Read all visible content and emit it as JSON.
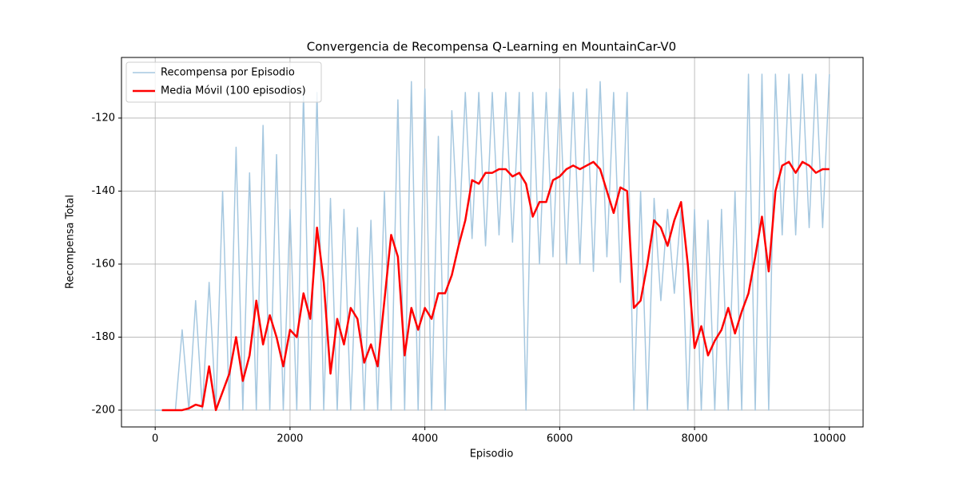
{
  "chart_data": {
    "type": "line",
    "title": "Convergencia de Recompensa Q-Learning en MountainCar-V0",
    "x_label": "Episodio",
    "y_label": "Recompensa Total",
    "xlim": [
      -500,
      10500
    ],
    "ylim": [
      -204.6,
      -103.4
    ],
    "xticks": [
      0,
      2000,
      4000,
      6000,
      8000,
      10000
    ],
    "yticks": [
      -200,
      -180,
      -160,
      -140,
      -120
    ],
    "grid": true,
    "legend": "upper-left",
    "series": [
      {
        "name": "Recompensa por Episodio",
        "color": "#a6c8e0",
        "width": 1.5,
        "x": [
          0,
          100,
          200,
          300,
          400,
          500,
          600,
          700,
          800,
          900,
          1000,
          1100,
          1200,
          1300,
          1400,
          1500,
          1600,
          1700,
          1800,
          1900,
          2000,
          2100,
          2200,
          2300,
          2400,
          2500,
          2600,
          2700,
          2800,
          2900,
          3000,
          3100,
          3200,
          3300,
          3400,
          3500,
          3600,
          3700,
          3800,
          3900,
          4000,
          4100,
          4200,
          4300,
          4400,
          4500,
          4600,
          4700,
          4800,
          4900,
          5000,
          5100,
          5200,
          5300,
          5400,
          5500,
          5600,
          5700,
          5800,
          5900,
          6000,
          6100,
          6200,
          6300,
          6400,
          6500,
          6600,
          6700,
          6800,
          6900,
          7000,
          7100,
          7200,
          7300,
          7400,
          7500,
          7600,
          7700,
          7800,
          7900,
          8000,
          8100,
          8200,
          8300,
          8400,
          8500,
          8600,
          8700,
          8800,
          8900,
          9000,
          9100,
          9200,
          9300,
          9400,
          9500,
          9600,
          9700,
          9800,
          9900,
          10000
        ],
        "values": [
          -200,
          -200,
          -200,
          -200,
          -178,
          -200,
          -170,
          -200,
          -165,
          -200,
          -140,
          -200,
          -128,
          -200,
          -135,
          -200,
          -122,
          -200,
          -130,
          -200,
          -145,
          -200,
          -113,
          -200,
          -113,
          -200,
          -142,
          -200,
          -145,
          -200,
          -150,
          -200,
          -148,
          -200,
          -140,
          -200,
          -115,
          -200,
          -110,
          -200,
          -112,
          -200,
          -125,
          -200,
          -118,
          -155,
          -113,
          -153,
          -113,
          -155,
          -113,
          -152,
          -113,
          -154,
          -113,
          -200,
          -113,
          -160,
          -113,
          -158,
          -112,
          -160,
          -113,
          -160,
          -112,
          -162,
          -110,
          -158,
          -113,
          -165,
          -113,
          -200,
          -140,
          -200,
          -142,
          -170,
          -145,
          -168,
          -145,
          -200,
          -145,
          -200,
          -148,
          -200,
          -145,
          -200,
          -140,
          -200,
          -108,
          -200,
          -108,
          -200,
          -108,
          -152,
          -108,
          -152,
          -108,
          -150,
          -108,
          -150,
          -108
        ]
      },
      {
        "name": "Media Móvil (100 episodios)",
        "color": "#ff0000",
        "width": 2.5,
        "x": [
          100,
          200,
          300,
          400,
          500,
          600,
          700,
          800,
          900,
          1000,
          1100,
          1200,
          1300,
          1400,
          1500,
          1600,
          1700,
          1800,
          1900,
          2000,
          2100,
          2200,
          2300,
          2400,
          2500,
          2600,
          2700,
          2800,
          2900,
          3000,
          3100,
          3200,
          3300,
          3400,
          3500,
          3600,
          3700,
          3800,
          3900,
          4000,
          4100,
          4200,
          4300,
          4400,
          4500,
          4600,
          4700,
          4800,
          4900,
          5000,
          5100,
          5200,
          5300,
          5400,
          5500,
          5600,
          5700,
          5800,
          5900,
          6000,
          6100,
          6200,
          6300,
          6400,
          6500,
          6600,
          6700,
          6800,
          6900,
          7000,
          7100,
          7200,
          7300,
          7400,
          7500,
          7600,
          7700,
          7800,
          7900,
          8000,
          8100,
          8200,
          8300,
          8400,
          8500,
          8600,
          8700,
          8800,
          8900,
          9000,
          9100,
          9200,
          9300,
          9400,
          9500,
          9600,
          9700,
          9800,
          9900,
          10000
        ],
        "values": [
          -200,
          -200,
          -200,
          -200,
          -199.5,
          -198.5,
          -199,
          -188,
          -200,
          -195,
          -190,
          -180,
          -192,
          -185,
          -170,
          -182,
          -174,
          -180,
          -188,
          -178,
          -180,
          -168,
          -175,
          -150,
          -165,
          -190,
          -175,
          -182,
          -172,
          -175,
          -187,
          -182,
          -188,
          -170,
          -152,
          -158,
          -185,
          -172,
          -178,
          -172,
          -175,
          -168,
          -168,
          -163,
          -155,
          -148,
          -137,
          -138,
          -135,
          -135,
          -134,
          -134,
          -136,
          -135,
          -138,
          -147,
          -143,
          -143,
          -137,
          -136,
          -134,
          -133,
          -134,
          -133,
          -132,
          -134,
          -140,
          -146,
          -139,
          -140,
          -172,
          -170,
          -160,
          -148,
          -150,
          -155,
          -148,
          -143,
          -160,
          -183,
          -177,
          -185,
          -181,
          -178,
          -172,
          -179,
          -173,
          -168,
          -158,
          -147,
          -162,
          -140,
          -133,
          -132,
          -135,
          -132,
          -133,
          -135,
          -134,
          -134
        ]
      }
    ]
  }
}
